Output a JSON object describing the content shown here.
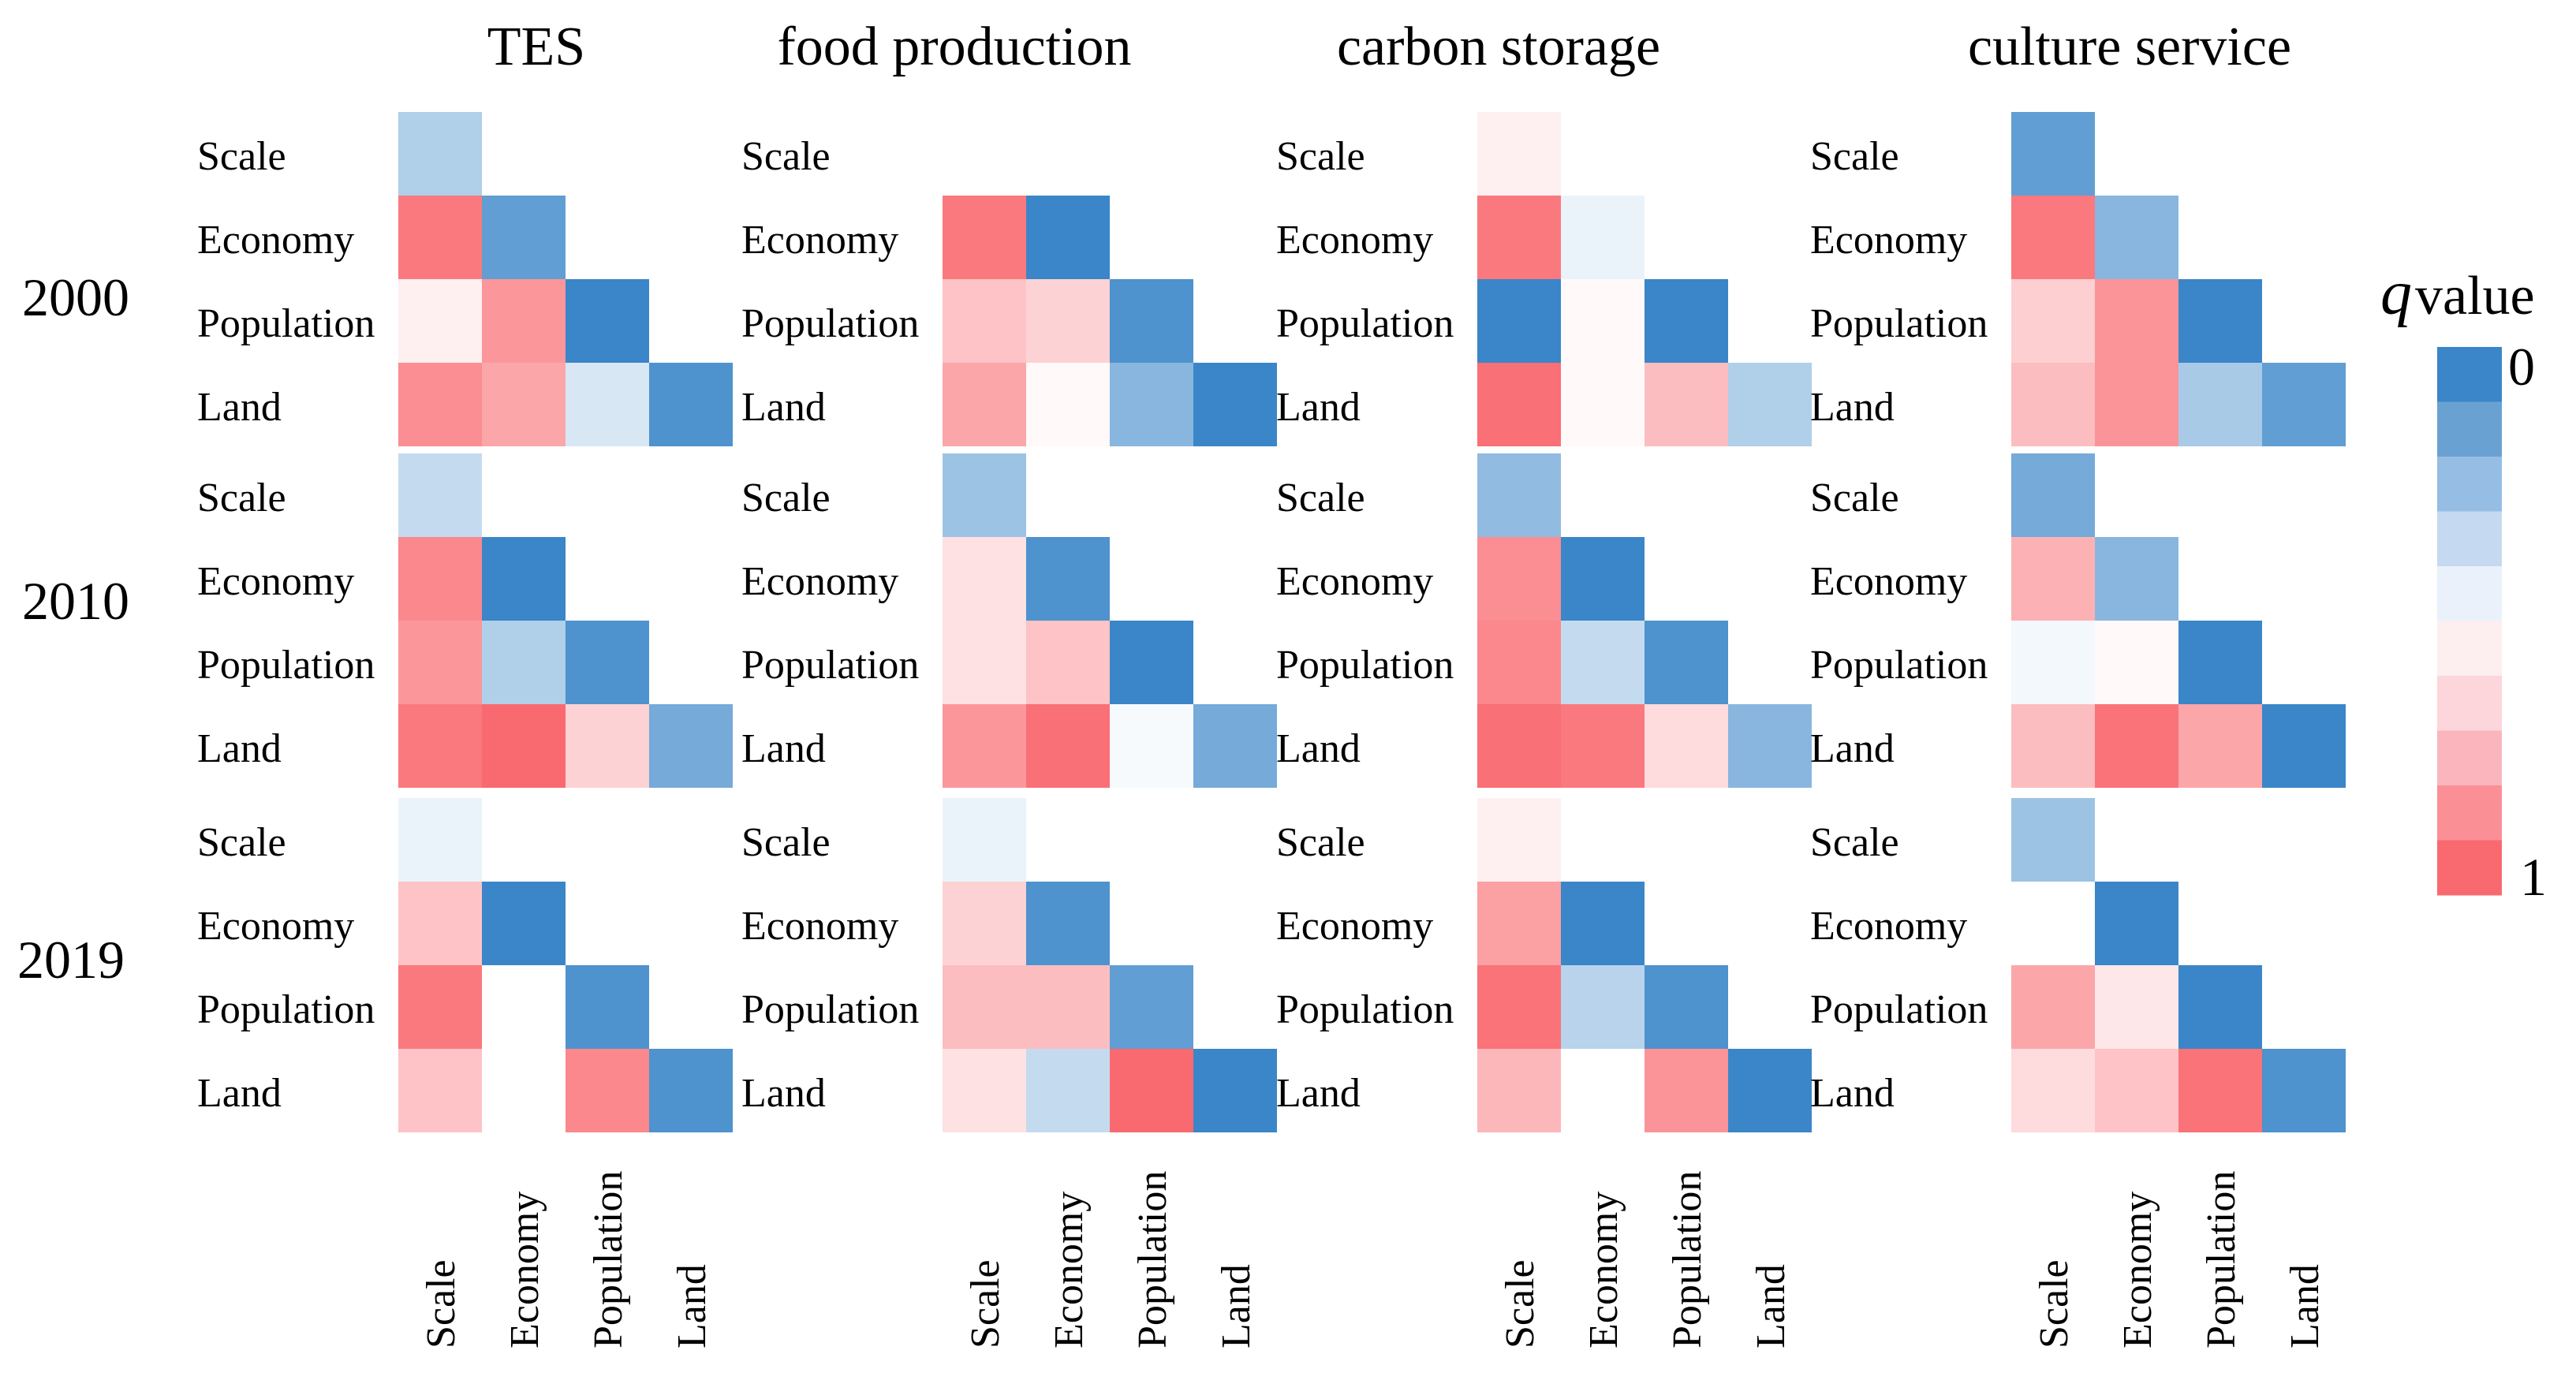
{
  "chart_data": {
    "type": "heatmap",
    "variables": [
      "Scale",
      "Economy",
      "Population",
      "Land"
    ],
    "years": [
      "2000",
      "2010",
      "2019"
    ],
    "legend": {
      "title_italic": "q",
      "title_rest": "value",
      "min_label": "0",
      "max_label": "1",
      "colors": [
        "#3a86c8",
        "#6aa1d3",
        "#96bde3",
        "#c5daf0",
        "#eaf1fa",
        "#fdeef0",
        "#fcd6db",
        "#fbb5bc",
        "#fa9096",
        "#f96a70"
      ]
    },
    "panels": [
      {
        "title": "TES",
        "grids": [
          [
            [
              0.3
            ],
            [
              0.95,
              0.1
            ],
            [
              0.55,
              0.85,
              0.0
            ],
            [
              0.88,
              0.8,
              0.4,
              0.05
            ]
          ],
          [
            [
              0.35
            ],
            [
              0.9,
              0.0
            ],
            [
              0.85,
              0.3,
              0.05
            ],
            [
              0.95,
              1.0,
              0.65,
              0.15
            ]
          ],
          [
            [
              0.45
            ],
            [
              0.7,
              0.0
            ],
            [
              0.95,
              0.5,
              0.05
            ],
            [
              0.7,
              0.5,
              0.9,
              0.05
            ]
          ]
        ]
      },
      {
        "title": "food production",
        "grids": [
          [
            [
              0.5
            ],
            [
              0.95,
              0.0
            ],
            [
              0.7,
              0.65,
              0.05
            ],
            [
              0.8,
              0.52,
              0.2,
              0.0
            ]
          ],
          [
            [
              0.25
            ],
            [
              0.6,
              0.05
            ],
            [
              0.6,
              0.7,
              0.0
            ],
            [
              0.85,
              0.98,
              0.48,
              0.15
            ]
          ],
          [
            [
              0.45
            ],
            [
              0.65,
              0.05
            ],
            [
              0.72,
              0.72,
              0.1
            ],
            [
              0.6,
              0.35,
              1.0,
              0.0
            ]
          ]
        ]
      },
      {
        "title": "carbon storage",
        "grids": [
          [
            [
              0.55
            ],
            [
              0.95,
              0.45
            ],
            [
              0.0,
              0.52,
              0.0
            ],
            [
              0.98,
              0.52,
              0.72,
              0.3
            ]
          ],
          [
            [
              0.22
            ],
            [
              0.88,
              0.0
            ],
            [
              0.9,
              0.35,
              0.05
            ],
            [
              0.98,
              0.95,
              0.62,
              0.2
            ]
          ],
          [
            [
              0.55
            ],
            [
              0.82,
              0.0
            ],
            [
              0.97,
              0.32,
              0.05
            ],
            [
              0.74,
              0.5,
              0.86,
              0.0
            ]
          ]
        ]
      },
      {
        "title": "culture service",
        "grids": [
          [
            [
              0.1
            ],
            [
              0.95,
              0.2
            ],
            [
              0.66,
              0.86,
              0.0
            ],
            [
              0.72,
              0.86,
              0.28,
              0.1
            ]
          ],
          [
            [
              0.15
            ],
            [
              0.76,
              0.2
            ],
            [
              0.47,
              0.52,
              0.0
            ],
            [
              0.72,
              0.97,
              0.8,
              0.0
            ]
          ],
          [
            [
              0.25
            ],
            [
              0.5,
              0.0
            ],
            [
              0.8,
              0.58,
              0.0
            ],
            [
              0.62,
              0.7,
              0.97,
              0.05
            ]
          ]
        ]
      }
    ]
  }
}
